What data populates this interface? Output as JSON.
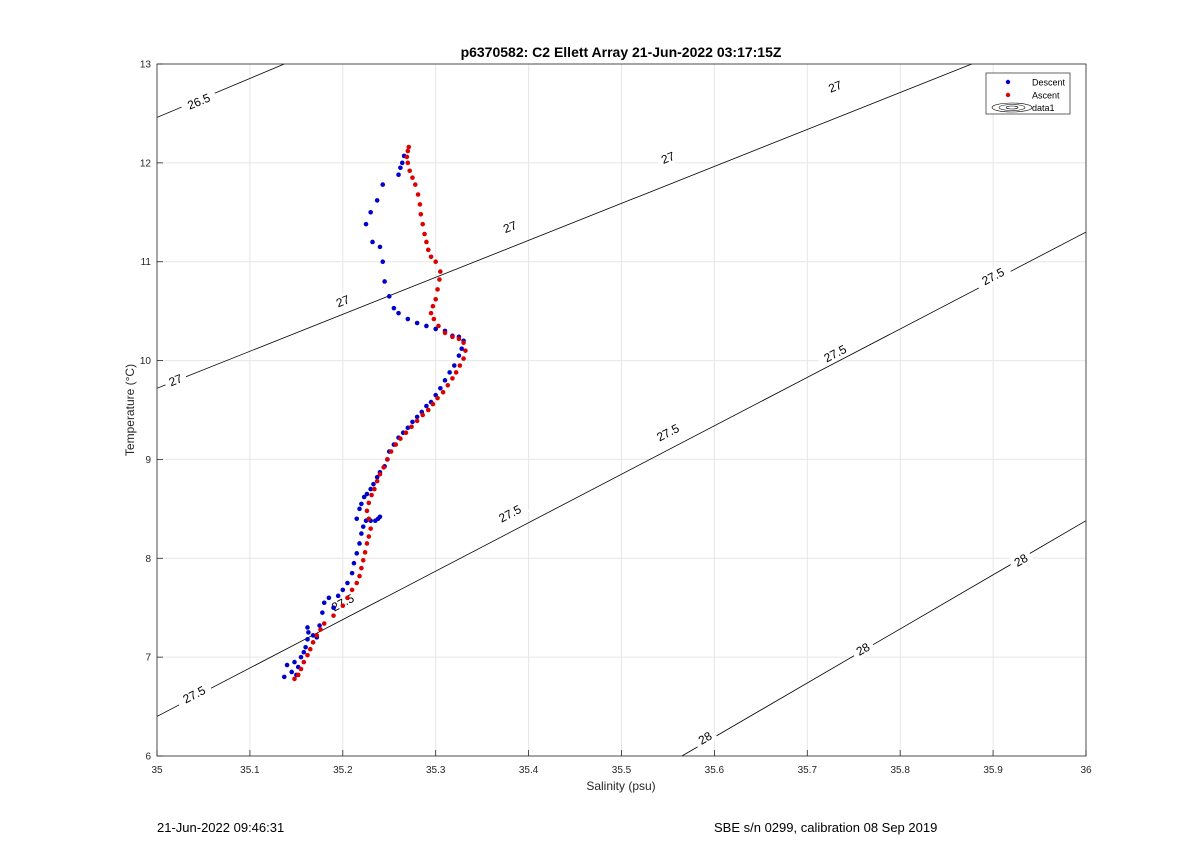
{
  "chart_data": {
    "type": "scatter",
    "title": "p6370582: C2 Ellett Array 21-Jun-2022 03:17:15Z",
    "xlabel": "Salinity (psu)",
    "ylabel": "Temperature (°C)",
    "xlim": [
      35,
      36
    ],
    "ylim": [
      6,
      13
    ],
    "xticks": [
      35,
      35.1,
      35.2,
      35.3,
      35.4,
      35.5,
      35.6,
      35.7,
      35.8,
      35.9,
      36
    ],
    "xtick_labels": [
      "35",
      "35.1",
      "35.2",
      "35.3",
      "35.4",
      "35.5",
      "35.6",
      "35.7",
      "35.8",
      "35.9",
      "36"
    ],
    "yticks": [
      6,
      7,
      8,
      9,
      10,
      11,
      12,
      13
    ],
    "ytick_labels": [
      "6",
      "7",
      "8",
      "9",
      "10",
      "11",
      "12",
      "13"
    ],
    "grid": true,
    "legend_position": "top-right",
    "series": [
      {
        "name": "Descent",
        "color": "#0000cc",
        "marker": "dot",
        "points": [
          [
            35.137,
            6.8
          ],
          [
            35.14,
            6.92
          ],
          [
            35.145,
            6.85
          ],
          [
            35.148,
            6.95
          ],
          [
            35.15,
            6.82
          ],
          [
            35.152,
            6.9
          ],
          [
            35.155,
            7.0
          ],
          [
            35.158,
            7.05
          ],
          [
            35.16,
            7.1
          ],
          [
            35.162,
            7.18
          ],
          [
            35.163,
            7.25
          ],
          [
            35.162,
            7.3
          ],
          [
            35.168,
            7.22
          ],
          [
            35.172,
            7.2
          ],
          [
            35.175,
            7.32
          ],
          [
            35.178,
            7.45
          ],
          [
            35.18,
            7.55
          ],
          [
            35.185,
            7.6
          ],
          [
            35.19,
            7.5
          ],
          [
            35.195,
            7.62
          ],
          [
            35.2,
            7.68
          ],
          [
            35.205,
            7.75
          ],
          [
            35.21,
            7.85
          ],
          [
            35.212,
            7.95
          ],
          [
            35.215,
            8.05
          ],
          [
            35.218,
            8.15
          ],
          [
            35.22,
            8.25
          ],
          [
            35.222,
            8.32
          ],
          [
            35.225,
            8.38
          ],
          [
            35.23,
            8.38
          ],
          [
            35.235,
            8.38
          ],
          [
            35.238,
            8.4
          ],
          [
            35.24,
            8.42
          ],
          [
            35.215,
            8.4
          ],
          [
            35.218,
            8.5
          ],
          [
            35.22,
            8.55
          ],
          [
            35.223,
            8.62
          ],
          [
            35.226,
            8.65
          ],
          [
            35.23,
            8.7
          ],
          [
            35.233,
            8.75
          ],
          [
            35.237,
            8.82
          ],
          [
            35.24,
            8.87
          ],
          [
            35.245,
            8.93
          ],
          [
            35.248,
            9.0
          ],
          [
            35.25,
            9.08
          ],
          [
            35.255,
            9.15
          ],
          [
            35.26,
            9.22
          ],
          [
            35.265,
            9.27
          ],
          [
            35.27,
            9.32
          ],
          [
            35.275,
            9.38
          ],
          [
            35.28,
            9.43
          ],
          [
            35.285,
            9.48
          ],
          [
            35.29,
            9.54
          ],
          [
            35.295,
            9.58
          ],
          [
            35.3,
            9.65
          ],
          [
            35.305,
            9.72
          ],
          [
            35.31,
            9.8
          ],
          [
            35.315,
            9.88
          ],
          [
            35.32,
            9.95
          ],
          [
            35.325,
            10.05
          ],
          [
            35.328,
            10.12
          ],
          [
            35.33,
            10.2
          ],
          [
            35.325,
            10.24
          ],
          [
            35.318,
            10.25
          ],
          [
            35.31,
            10.3
          ],
          [
            35.3,
            10.32
          ],
          [
            35.29,
            10.35
          ],
          [
            35.28,
            10.38
          ],
          [
            35.27,
            10.42
          ],
          [
            35.26,
            10.48
          ],
          [
            35.255,
            10.53
          ],
          [
            35.25,
            10.65
          ],
          [
            35.245,
            10.8
          ],
          [
            35.243,
            11.0
          ],
          [
            35.24,
            11.15
          ],
          [
            35.232,
            11.2
          ],
          [
            35.225,
            11.38
          ],
          [
            35.23,
            11.5
          ],
          [
            35.237,
            11.62
          ],
          [
            35.243,
            11.78
          ],
          [
            35.26,
            11.88
          ],
          [
            35.262,
            11.95
          ],
          [
            35.264,
            12.0
          ],
          [
            35.266,
            12.07
          ]
        ]
      },
      {
        "name": "Ascent",
        "color": "#dd0000",
        "marker": "dot",
        "points": [
          [
            35.148,
            6.78
          ],
          [
            35.152,
            6.82
          ],
          [
            35.155,
            6.88
          ],
          [
            35.158,
            6.95
          ],
          [
            35.162,
            7.02
          ],
          [
            35.165,
            7.08
          ],
          [
            35.168,
            7.15
          ],
          [
            35.172,
            7.22
          ],
          [
            35.176,
            7.28
          ],
          [
            35.18,
            7.34
          ],
          [
            35.19,
            7.42
          ],
          [
            35.2,
            7.52
          ],
          [
            35.205,
            7.6
          ],
          [
            35.21,
            7.68
          ],
          [
            35.215,
            7.75
          ],
          [
            35.218,
            7.82
          ],
          [
            35.22,
            7.9
          ],
          [
            35.222,
            7.98
          ],
          [
            35.224,
            8.06
          ],
          [
            35.226,
            8.15
          ],
          [
            35.228,
            8.22
          ],
          [
            35.23,
            8.3
          ],
          [
            35.228,
            8.4
          ],
          [
            35.226,
            8.48
          ],
          [
            35.228,
            8.56
          ],
          [
            35.231,
            8.64
          ],
          [
            35.234,
            8.7
          ],
          [
            35.237,
            8.78
          ],
          [
            35.24,
            8.85
          ],
          [
            35.244,
            8.92
          ],
          [
            35.248,
            9.0
          ],
          [
            35.252,
            9.08
          ],
          [
            35.257,
            9.15
          ],
          [
            35.262,
            9.21
          ],
          [
            35.268,
            9.27
          ],
          [
            35.274,
            9.33
          ],
          [
            35.28,
            9.39
          ],
          [
            35.286,
            9.45
          ],
          [
            35.292,
            9.5
          ],
          [
            35.297,
            9.56
          ],
          [
            35.302,
            9.62
          ],
          [
            35.308,
            9.68
          ],
          [
            35.313,
            9.75
          ],
          [
            35.318,
            9.82
          ],
          [
            35.322,
            9.88
          ],
          [
            35.326,
            9.95
          ],
          [
            35.33,
            10.02
          ],
          [
            35.332,
            10.1
          ],
          [
            35.33,
            10.18
          ],
          [
            35.325,
            10.22
          ],
          [
            35.318,
            10.24
          ],
          [
            35.31,
            10.28
          ],
          [
            35.303,
            10.35
          ],
          [
            35.298,
            10.42
          ],
          [
            35.295,
            10.48
          ],
          [
            35.297,
            10.55
          ],
          [
            35.3,
            10.62
          ],
          [
            35.302,
            10.72
          ],
          [
            35.304,
            10.82
          ],
          [
            35.305,
            10.9
          ],
          [
            35.3,
            11.0
          ],
          [
            35.295,
            11.05
          ],
          [
            35.292,
            11.12
          ],
          [
            35.29,
            11.2
          ],
          [
            35.288,
            11.28
          ],
          [
            35.286,
            11.38
          ],
          [
            35.284,
            11.48
          ],
          [
            35.283,
            11.58
          ],
          [
            35.281,
            11.68
          ],
          [
            35.278,
            11.78
          ],
          [
            35.275,
            11.85
          ],
          [
            35.272,
            11.92
          ],
          [
            35.27,
            12.0
          ],
          [
            35.269,
            12.06
          ],
          [
            35.27,
            12.12
          ],
          [
            35.271,
            12.16
          ]
        ]
      }
    ],
    "contours": {
      "name": "data1",
      "color": "#000000",
      "lines": [
        {
          "level": "26.5",
          "points": [
            [
              35.0,
              12.46
            ],
            [
              35.137,
              13.0
            ]
          ],
          "labels": [
            [
              35.045,
              12.62
            ]
          ]
        },
        {
          "level": "27",
          "points": [
            [
              35.0,
              9.72
            ],
            [
              36.0,
              13.46
            ]
          ],
          "labels": [
            [
              35.02,
              9.8
            ],
            [
              35.2,
              10.6
            ],
            [
              35.38,
              11.35
            ],
            [
              35.55,
              12.05
            ],
            [
              35.73,
              12.77
            ]
          ]
        },
        {
          "level": "27.5",
          "points": [
            [
              35.0,
              6.4
            ],
            [
              36.0,
              11.3
            ]
          ],
          "labels": [
            [
              35.04,
              6.62
            ],
            [
              35.2,
              7.55
            ],
            [
              35.38,
              8.45
            ],
            [
              35.55,
              9.27
            ],
            [
              35.73,
              10.07
            ],
            [
              35.9,
              10.85
            ]
          ]
        },
        {
          "level": "28",
          "points": [
            [
              35.565,
              6.0
            ],
            [
              36.0,
              8.38
            ]
          ],
          "labels": [
            [
              35.59,
              6.18
            ],
            [
              35.76,
              7.08
            ],
            [
              35.93,
              7.98
            ]
          ]
        }
      ]
    }
  },
  "footer": {
    "left": "21-Jun-2022 09:46:31",
    "right": "SBE s/n 0299, calibration 08 Sep 2019"
  }
}
